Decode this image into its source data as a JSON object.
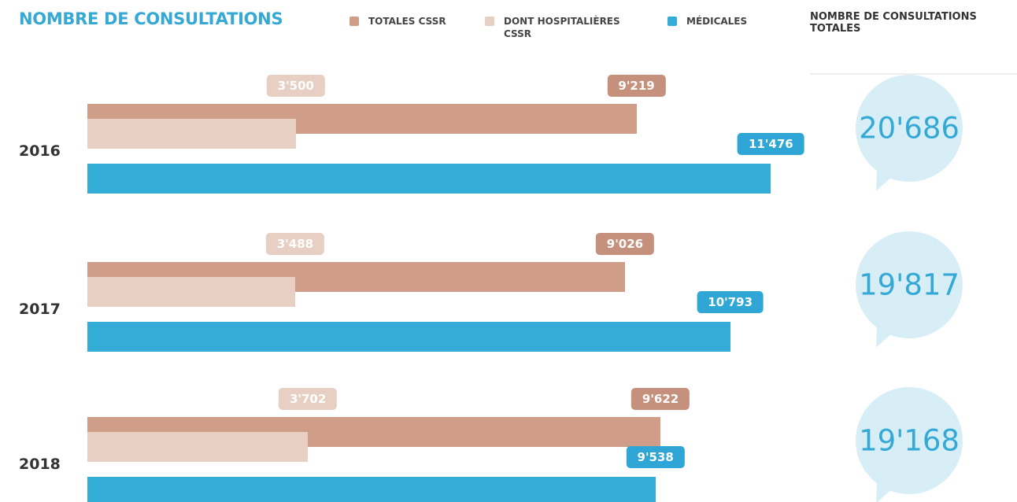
{
  "chart_data": {
    "type": "bar",
    "title": "NOMBRE DE CONSULTATIONS",
    "categories": [
      "2016",
      "2017",
      "2018"
    ],
    "series": [
      {
        "name": "TOTALES CSSR",
        "color": "#d09d89",
        "label_color": "#c6917c",
        "values": [
          9219,
          9026,
          9622
        ],
        "value_labels": [
          "9'219",
          "9'026",
          "9'622"
        ]
      },
      {
        "name": "DONT HOSPITALIÈRES CSSR",
        "color": "#e8cfc3",
        "label_color": "#e8cfc3",
        "values": [
          3500,
          3488,
          3702
        ],
        "value_labels": [
          "3'500",
          "3'488",
          "3'702"
        ]
      },
      {
        "name": "MÉDICALES",
        "color": "#34acd8",
        "label_color": "#2fa6d6",
        "values": [
          11476,
          10793,
          9538
        ],
        "value_labels": [
          "11'476",
          "10'793",
          "9'538"
        ]
      }
    ],
    "xlim": [
      0,
      12000
    ],
    "totals": {
      "title": "NOMBRE DE CONSULTATIONS TOTALES",
      "values": [
        20686,
        19817,
        19168
      ],
      "value_labels": [
        "20'686",
        "19'817",
        "19'168"
      ]
    }
  }
}
